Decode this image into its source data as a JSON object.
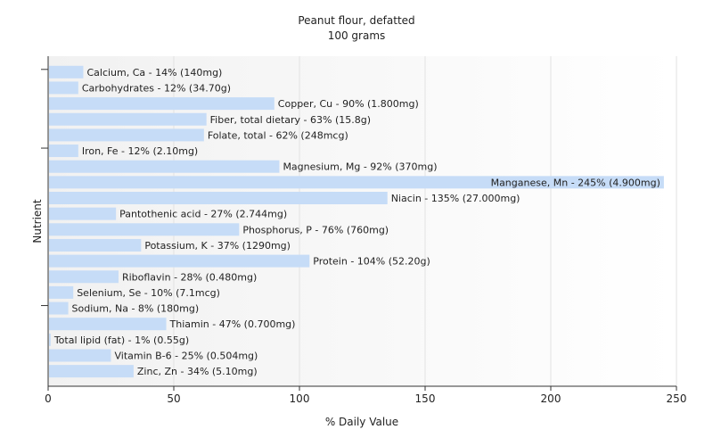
{
  "chart_data": {
    "type": "bar",
    "orientation": "horizontal",
    "title": "Peanut flour, defatted",
    "subtitle": "100 grams",
    "xlabel": "% Daily Value",
    "ylabel": "Nutrient",
    "xlim": [
      0,
      250
    ],
    "xticks": [
      "0",
      "50",
      "100",
      "150",
      "200",
      "250"
    ],
    "grid": true,
    "bar_color": "#c6dcf7",
    "categories": [
      "Calcium, Ca",
      "Carbohydrates",
      "Copper, Cu",
      "Fiber, total dietary",
      "Folate, total",
      "Iron, Fe",
      "Magnesium, Mg",
      "Manganese, Mn",
      "Niacin",
      "Pantothenic acid",
      "Phosphorus, P",
      "Potassium, K",
      "Protein",
      "Riboflavin",
      "Selenium, Se",
      "Sodium, Na",
      "Thiamin",
      "Total lipid (fat)",
      "Vitamin B-6",
      "Zinc, Zn"
    ],
    "values": [
      14,
      12,
      90,
      63,
      62,
      12,
      92,
      245,
      135,
      27,
      76,
      37,
      104,
      28,
      10,
      8,
      47,
      1,
      25,
      34
    ],
    "labels": [
      "Calcium, Ca - 14% (140mg)",
      "Carbohydrates - 12% (34.70g)",
      "Copper, Cu - 90% (1.800mg)",
      "Fiber, total dietary - 63% (15.8g)",
      "Folate, total - 62% (248mcg)",
      "Iron, Fe - 12% (2.10mg)",
      "Magnesium, Mg - 92% (370mg)",
      "Manganese, Mn - 245% (4.900mg)",
      "Niacin - 135% (27.000mg)",
      "Pantothenic acid - 27% (2.744mg)",
      "Phosphorus, P - 76% (760mg)",
      "Potassium, K - 37% (1290mg)",
      "Protein - 104% (52.20g)",
      "Riboflavin - 28% (0.480mg)",
      "Selenium, Se - 10% (7.1mcg)",
      "Sodium, Na - 8% (180mg)",
      "Thiamin - 47% (0.700mg)",
      "Total lipid (fat) - 1% (0.55g)",
      "Vitamin B-6 - 25% (0.504mg)",
      "Zinc, Zn - 34% (5.10mg)"
    ]
  }
}
